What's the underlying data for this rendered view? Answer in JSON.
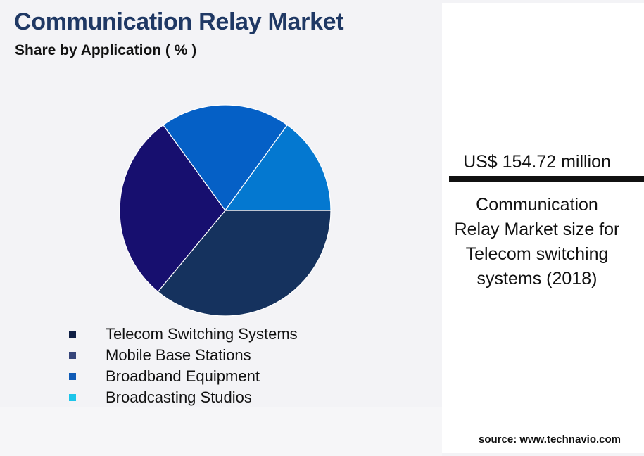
{
  "header": {
    "title": "Communication Relay Market",
    "subtitle": "Share by Application ( % )"
  },
  "chart_data": {
    "type": "pie",
    "categories": [
      "Telecom Switching Systems",
      "Mobile Base Stations",
      "Broadband Equipment",
      "Broadcasting Studios"
    ],
    "values": [
      36,
      29,
      20,
      15
    ],
    "colors": [
      "#15325e",
      "#170f6f",
      "#0560c6",
      "#0478d0"
    ],
    "legend_colors": [
      "#0f1f44",
      "#36457a",
      "#0f5bb6",
      "#1cc5ea"
    ],
    "legend_placement": "bottom-left"
  },
  "legend": {
    "items": [
      {
        "label": "Telecom Switching Systems"
      },
      {
        "label": "Mobile Base Stations"
      },
      {
        "label": "Broadband Equipment"
      },
      {
        "label": "Broadcasting Studios"
      }
    ]
  },
  "side_panel": {
    "market_value": "US$ 154.72 million",
    "description": "Communication Relay Market size for Telecom switching systems (2018)",
    "source": "source: www.technavio.com"
  }
}
